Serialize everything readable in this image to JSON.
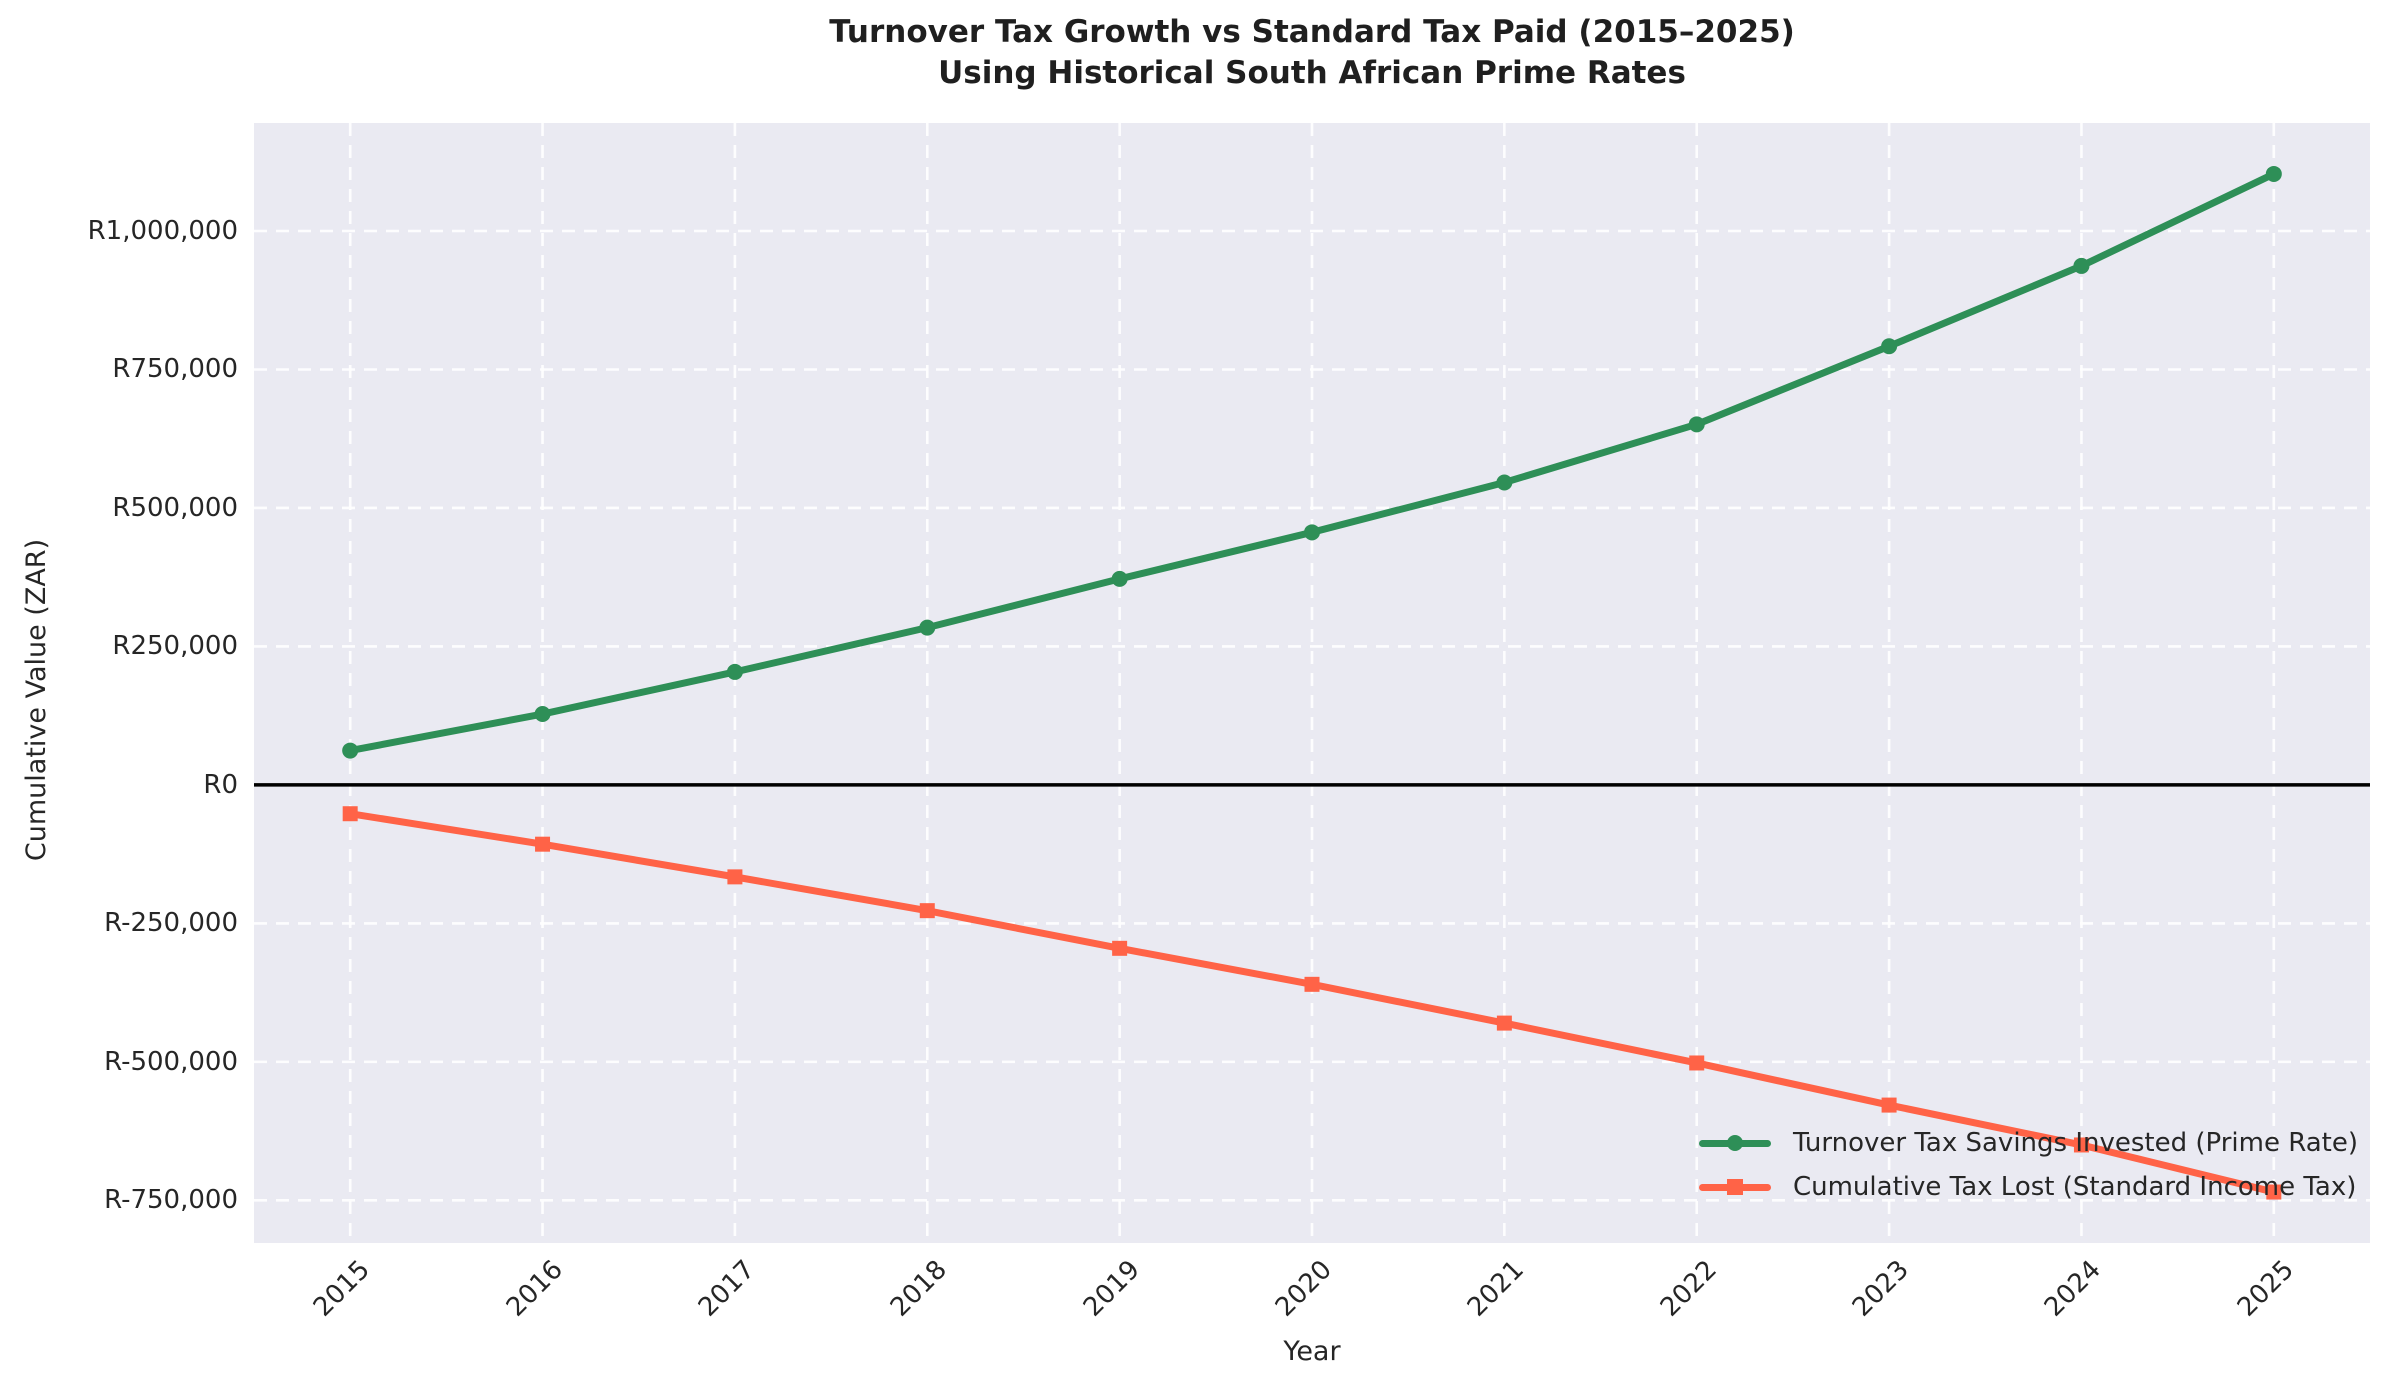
{
  "figure": {
    "title_line1": "Turnover Tax Growth vs Standard Tax Paid (2015–2025)",
    "title_line2": "Using Historical South African Prime Rates"
  },
  "chart_data": {
    "type": "line",
    "title": "Turnover Tax Growth vs Standard Tax Paid (2015–2025)",
    "subtitle": "Using Historical South African Prime Rates",
    "xlabel": "Year",
    "ylabel": "Cumulative Value (ZAR)",
    "x": [
      2015,
      2016,
      2017,
      2018,
      2019,
      2020,
      2021,
      2022,
      2023,
      2024,
      2025
    ],
    "x_tick_labels": [
      "2015",
      "2016",
      "2017",
      "2018",
      "2019",
      "2020",
      "2021",
      "2022",
      "2023",
      "2024",
      "2025"
    ],
    "series": [
      {
        "name": "Turnover Tax Savings Invested (Prime Rate)",
        "color": "#2e8f57",
        "marker": "circle",
        "values": [
          62000,
          128000,
          204000,
          284000,
          372000,
          456000,
          546000,
          651000,
          792000,
          937000,
          1103000
        ]
      },
      {
        "name": "Cumulative Tax Lost (Standard Income Tax)",
        "color": "#ff6347",
        "marker": "square",
        "values": [
          -52000,
          -107000,
          -166000,
          -227000,
          -295000,
          -360000,
          -430000,
          -502000,
          -578000,
          -650000,
          -735000
        ]
      }
    ],
    "y_ticks": [
      {
        "label": "R1,000,000",
        "value": 1000000
      },
      {
        "label": "R750,000",
        "value": 750000
      },
      {
        "label": "R500,000",
        "value": 500000
      },
      {
        "label": "R250,000",
        "value": 250000
      },
      {
        "label": "R0",
        "value": 0
      },
      {
        "label": "R-250,000",
        "value": -250000
      },
      {
        "label": "R-500,000",
        "value": -500000
      },
      {
        "label": "R-750,000",
        "value": -750000
      }
    ],
    "xlim": [
      2014.5,
      2025.5
    ],
    "ylim": [
      -827000,
      1195000
    ],
    "grid": "white dashed on",
    "zero_line": true,
    "zero_line_color": "#000000",
    "plot_background": "#eaeaf2",
    "legend_position": "lower right"
  }
}
